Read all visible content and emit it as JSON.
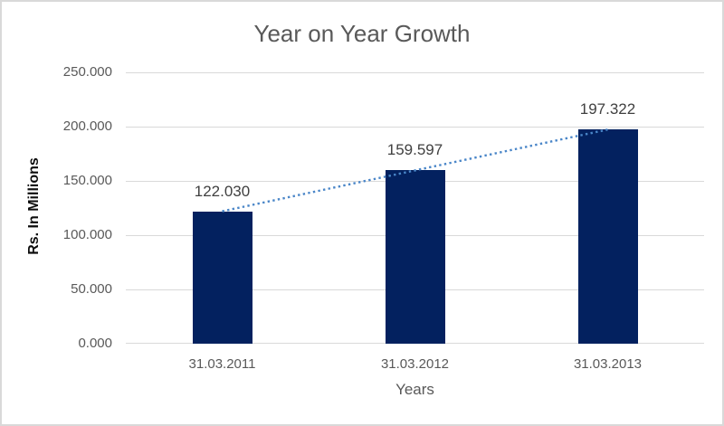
{
  "window": {
    "background_color": "#ffffff",
    "border_color": "#d9d9d9"
  },
  "chart_data": {
    "type": "bar",
    "title": "Year on Year Growth",
    "xlabel": "Years",
    "ylabel": "Rs. In Millions",
    "categories": [
      "31.03.2011",
      "31.03.2012",
      "31.03.2013"
    ],
    "values": [
      122.03,
      159.597,
      197.322
    ],
    "data_labels": [
      "122.030",
      "159.597",
      "197.322"
    ],
    "ylim": [
      0,
      250
    ],
    "ytick_step": 50,
    "ytick_labels": [
      "0.000",
      "50.000",
      "100.000",
      "150.000",
      "200.000",
      "250.000"
    ],
    "grid": true,
    "legend": false,
    "series_name": "Rs. In Millions",
    "bar_color": "#03215f",
    "trendline": {
      "type": "linear",
      "style": "dotted",
      "color": "#4a86c8"
    },
    "colors": {
      "title_text": "#595959",
      "tick_text": "#595959",
      "data_label_text": "#404040",
      "y_axis_title_text": "#0d0d0d",
      "x_axis_title_text": "#595959",
      "gridline": "#d9d9d9"
    }
  }
}
